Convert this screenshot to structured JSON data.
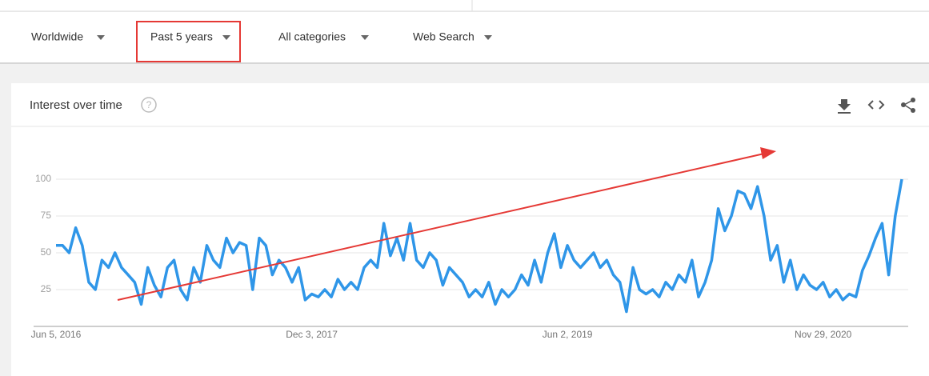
{
  "filters": [
    "Worldwide",
    "Past 5 years",
    "All categories",
    "Web Search"
  ],
  "card": {
    "title": "Interest over time"
  },
  "chart_data": {
    "type": "line",
    "color": "#2f96e8",
    "grid": true,
    "ylim": [
      0,
      100
    ],
    "yticks": [
      25,
      50,
      75,
      100
    ],
    "categories": [
      "Jun 5, 2016",
      null,
      null,
      null,
      null,
      null,
      null,
      null,
      null,
      null,
      null,
      null,
      null,
      null,
      null,
      null,
      null,
      null,
      null,
      null,
      null,
      null,
      null,
      null,
      null,
      null,
      null,
      null,
      null,
      null,
      null,
      null,
      null,
      null,
      null,
      null,
      null,
      null,
      null,
      "Dec 3, 2017",
      null,
      null,
      null,
      null,
      null,
      null,
      null,
      null,
      null,
      null,
      null,
      null,
      null,
      null,
      null,
      null,
      null,
      null,
      null,
      null,
      null,
      null,
      null,
      null,
      null,
      null,
      null,
      null,
      null,
      null,
      null,
      null,
      null,
      null,
      null,
      null,
      null,
      null,
      "Jun 2, 2019",
      null,
      null,
      null,
      null,
      null,
      null,
      null,
      null,
      null,
      null,
      null,
      null,
      null,
      null,
      null,
      null,
      null,
      null,
      null,
      null,
      null,
      null,
      null,
      null,
      null,
      null,
      null,
      null,
      null,
      null,
      null,
      null,
      null,
      null,
      null,
      null,
      null,
      null,
      "Nov 29, 2020",
      null,
      null,
      null,
      null,
      null,
      null,
      null,
      null,
      null,
      null,
      null,
      null
    ],
    "values": [
      55,
      55,
      50,
      67,
      55,
      30,
      25,
      45,
      40,
      50,
      40,
      35,
      30,
      15,
      40,
      28,
      20,
      40,
      45,
      25,
      18,
      40,
      30,
      55,
      45,
      40,
      60,
      50,
      57,
      55,
      25,
      60,
      55,
      35,
      45,
      40,
      30,
      40,
      18,
      22,
      20,
      25,
      20,
      32,
      25,
      30,
      25,
      40,
      45,
      40,
      70,
      48,
      60,
      45,
      70,
      45,
      40,
      50,
      45,
      28,
      40,
      35,
      30,
      20,
      25,
      20,
      30,
      15,
      25,
      20,
      25,
      35,
      28,
      45,
      30,
      50,
      63,
      40,
      55,
      45,
      40,
      45,
      50,
      40,
      45,
      35,
      30,
      10,
      40,
      25,
      22,
      25,
      20,
      30,
      25,
      35,
      30,
      45,
      20,
      30,
      45,
      80,
      65,
      75,
      92,
      90,
      80,
      95,
      75,
      45,
      55,
      30,
      45,
      25,
      35,
      28,
      25,
      30,
      20,
      25,
      18,
      22,
      20,
      38,
      48,
      60,
      70,
      35,
      75,
      100
    ]
  }
}
